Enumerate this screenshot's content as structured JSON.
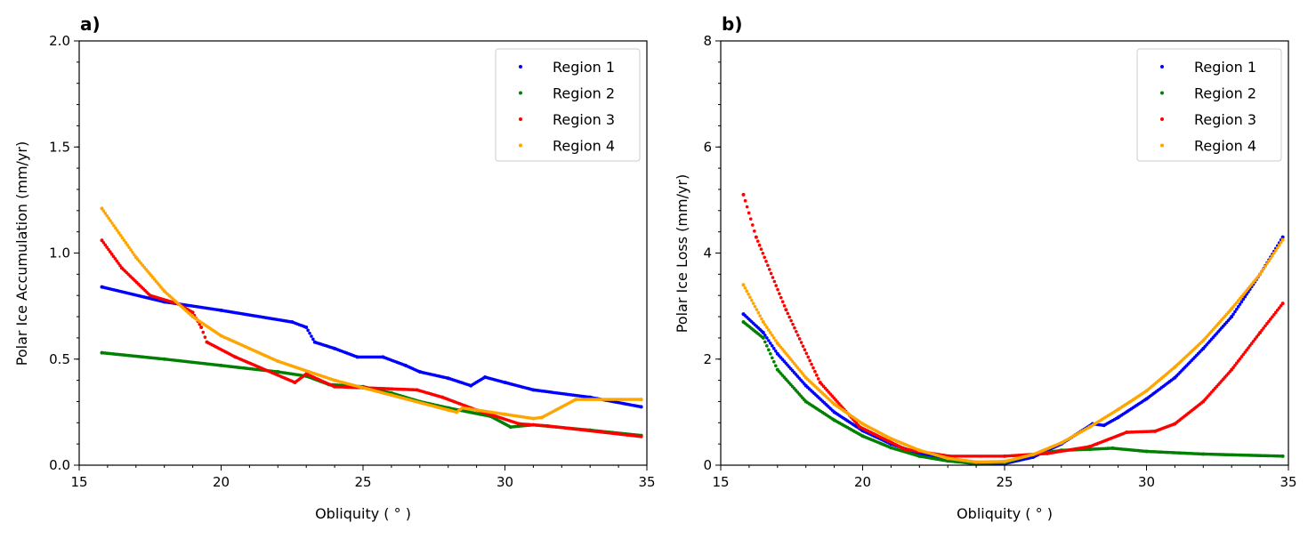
{
  "colors": {
    "Region 1": "#0000ff",
    "Region 2": "#008000",
    "Region 3": "#ff0000",
    "Region 4": "#ffa500"
  },
  "chart_data": [
    {
      "type": "scatter",
      "panel_label": "a)",
      "xlabel": "Obliquity ($^\\circ$)",
      "xlabel_display": "Obliquity ( ° )",
      "ylabel": "Polar Ice Accumulation (mm/yr)",
      "xlim": [
        15,
        35
      ],
      "ylim": [
        0,
        2.0
      ],
      "xticks": [
        "15",
        "20",
        "25",
        "30",
        "35"
      ],
      "yticks": [
        "0.0",
        "0.5",
        "1.0",
        "1.5",
        "2.0"
      ],
      "legend_position": "top-right",
      "grid": false,
      "series": [
        {
          "name": "Region 1",
          "x": [
            15.8,
            18,
            20,
            22.5,
            23,
            23.3,
            24,
            24.8,
            25.7,
            26.5,
            27,
            28,
            28.8,
            29.3,
            30,
            31,
            33,
            34.8
          ],
          "y": [
            0.84,
            0.77,
            0.73,
            0.675,
            0.65,
            0.58,
            0.55,
            0.51,
            0.51,
            0.47,
            0.44,
            0.41,
            0.375,
            0.415,
            0.39,
            0.355,
            0.32,
            0.275
          ]
        },
        {
          "name": "Region 2",
          "x": [
            15.8,
            18,
            20,
            22,
            23,
            23.8,
            25,
            26,
            27,
            28,
            29.5,
            30.2,
            31,
            33,
            34.8
          ],
          "y": [
            0.53,
            0.5,
            0.47,
            0.44,
            0.42,
            0.38,
            0.37,
            0.34,
            0.3,
            0.27,
            0.23,
            0.18,
            0.19,
            0.165,
            0.14
          ]
        },
        {
          "name": "Region 3",
          "x": [
            15.8,
            16.5,
            17.5,
            18.5,
            19,
            19.3,
            19.5,
            20.5,
            22.6,
            23,
            24,
            25,
            26.9,
            27.8,
            29,
            30.5,
            31.5,
            34.8
          ],
          "y": [
            1.06,
            0.93,
            0.8,
            0.76,
            0.72,
            0.65,
            0.58,
            0.51,
            0.39,
            0.43,
            0.37,
            0.365,
            0.355,
            0.32,
            0.26,
            0.195,
            0.185,
            0.135
          ]
        },
        {
          "name": "Region 4",
          "x": [
            15.8,
            17,
            18,
            19,
            20,
            22,
            24,
            26,
            28,
            28.3,
            28.5,
            30,
            31,
            31.3,
            32.5,
            34.8
          ],
          "y": [
            1.21,
            0.98,
            0.82,
            0.7,
            0.61,
            0.49,
            0.4,
            0.33,
            0.26,
            0.25,
            0.27,
            0.24,
            0.22,
            0.225,
            0.31,
            0.31
          ]
        }
      ]
    },
    {
      "type": "scatter",
      "panel_label": "b)",
      "xlabel": "Obliquity ($^\\circ$)",
      "xlabel_display": "Obliquity ( ° )",
      "ylabel": "Polar Ice Loss (mm/yr)",
      "xlim": [
        15,
        35
      ],
      "ylim": [
        0,
        8
      ],
      "xticks": [
        "15",
        "20",
        "25",
        "30",
        "35"
      ],
      "yticks": [
        "0",
        "2",
        "4",
        "6",
        "8"
      ],
      "legend_position": "top-right",
      "grid": false,
      "series": [
        {
          "name": "Region 1",
          "x": [
            15.8,
            16.5,
            17,
            18,
            19,
            20,
            21,
            22,
            23,
            24,
            25,
            26,
            27,
            28.1,
            28.5,
            29,
            30,
            31,
            32,
            33,
            34,
            34.8
          ],
          "y": [
            2.85,
            2.5,
            2.1,
            1.5,
            1.0,
            0.65,
            0.4,
            0.22,
            0.1,
            0.02,
            0.03,
            0.15,
            0.4,
            0.78,
            0.75,
            0.9,
            1.25,
            1.65,
            2.2,
            2.8,
            3.6,
            4.3
          ]
        },
        {
          "name": "Region 2",
          "x": [
            15.8,
            16.5,
            17,
            18,
            19,
            20,
            21,
            22,
            23,
            24,
            25,
            26,
            27,
            28,
            28.8,
            30,
            32,
            34.8
          ],
          "y": [
            2.7,
            2.4,
            1.8,
            1.2,
            0.85,
            0.55,
            0.33,
            0.17,
            0.08,
            0.03,
            0.05,
            0.2,
            0.28,
            0.3,
            0.32,
            0.26,
            0.21,
            0.17
          ]
        },
        {
          "name": "Region 3",
          "x": [
            15.8,
            16.25,
            17.3,
            18.5,
            19.9,
            21.5,
            23.05,
            25,
            26.5,
            28,
            29.3,
            30.3,
            31,
            32,
            33,
            34,
            34.8
          ],
          "y": [
            5.1,
            4.3,
            2.93,
            1.56,
            0.72,
            0.3,
            0.17,
            0.17,
            0.22,
            0.35,
            0.62,
            0.64,
            0.78,
            1.2,
            1.8,
            2.5,
            3.05
          ]
        },
        {
          "name": "Region 4",
          "x": [
            15.8,
            16.5,
            17,
            18,
            19,
            20,
            21,
            22,
            23,
            24,
            25,
            26,
            27,
            28,
            29,
            30,
            31,
            32,
            33,
            34,
            34.8
          ],
          "y": [
            3.4,
            2.7,
            2.3,
            1.65,
            1.15,
            0.78,
            0.5,
            0.28,
            0.13,
            0.06,
            0.07,
            0.2,
            0.42,
            0.72,
            1.05,
            1.4,
            1.85,
            2.35,
            2.95,
            3.6,
            4.25
          ]
        }
      ]
    }
  ]
}
